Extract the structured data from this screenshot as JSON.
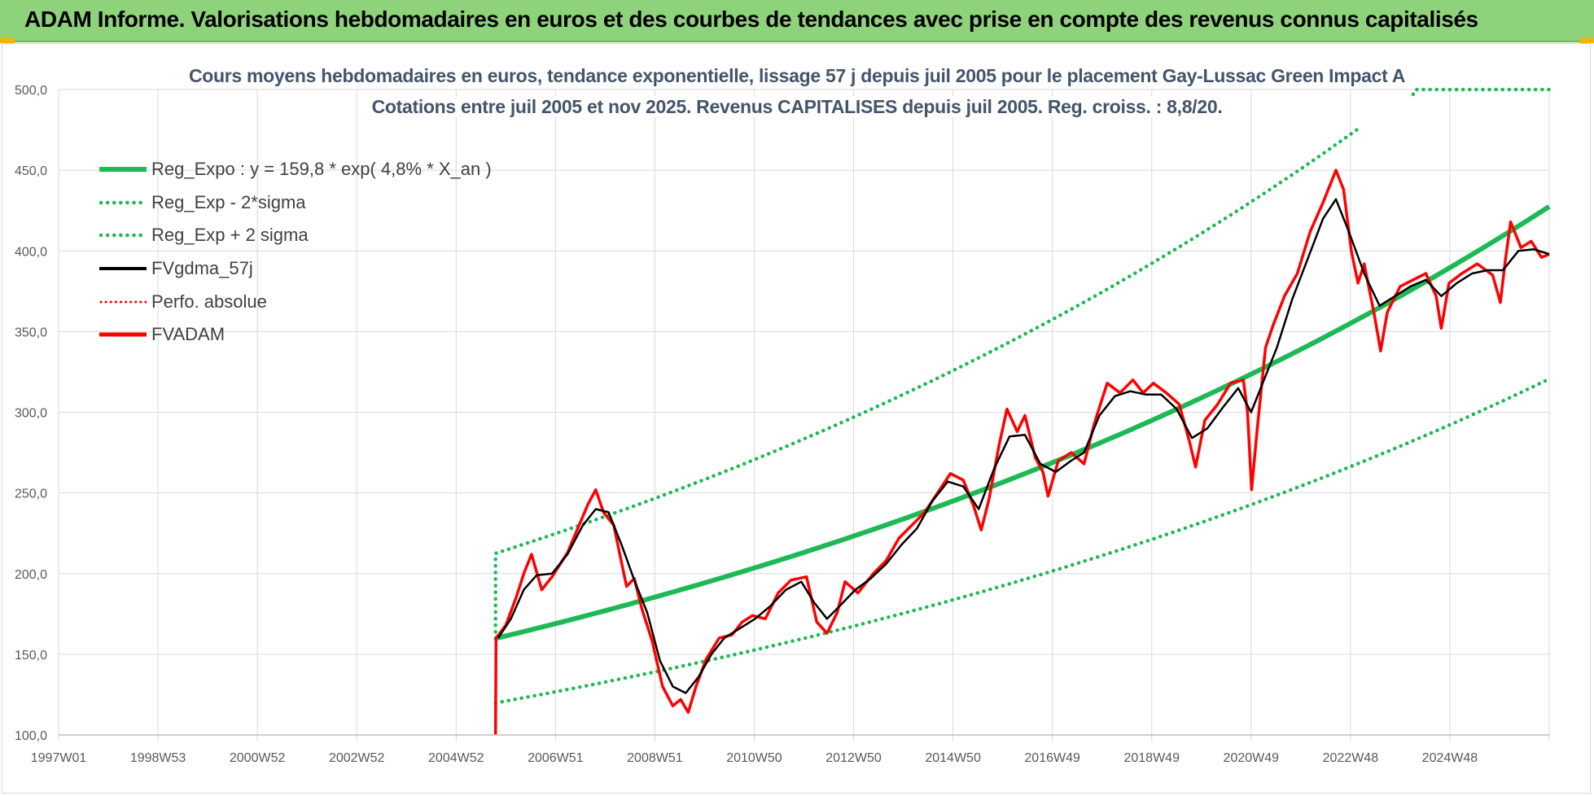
{
  "banner": {
    "title": "ADAM Informe. Valorisations hebdomadaires en euros et des courbes de tendances avec prise en compte des revenus connus capitalisés"
  },
  "colors": {
    "banner_bg": "#8fd27c",
    "reg_green": "#1db954",
    "black": "#000000",
    "red": "#ff0000",
    "grid": "#d9d9d9",
    "axis_text": "#595959"
  },
  "chart_data": {
    "type": "line",
    "title_line1": "Cours moyens hebdomadaires en euros, tendance exponentielle, lissage 57 j depuis juil 2005 pour le placement Gay-Lussac Green Impact A",
    "title_line2": "Cotations entre juil 2005 et nov 2025. Revenus CAPITALISES depuis juil 2005. Reg. croiss. : 8,8/20.",
    "x_ticks": [
      "1997W01",
      "1998W53",
      "2000W52",
      "2002W52",
      "2004W52",
      "2006W51",
      "2008W51",
      "2010W50",
      "2012W50",
      "2014W50",
      "2016W49",
      "2018W49",
      "2020W49",
      "2022W48",
      "2024W48"
    ],
    "x_range": [
      1997.0,
      2026.0
    ],
    "ylim": [
      100,
      500
    ],
    "y_ticks": [
      "100,0",
      "150,0",
      "200,0",
      "250,0",
      "300,0",
      "350,0",
      "400,0",
      "450,0",
      "500,0"
    ],
    "legend": [
      {
        "name": "Reg_Expo : y = 159,8 * exp( 4,8% *  X_an )",
        "style": "solid-green"
      },
      {
        "name": "Reg_Exp - 2*sigma",
        "style": "dotted-green"
      },
      {
        "name": "Reg_Exp + 2 sigma",
        "style": "dotted-green"
      },
      {
        "name": "FVgdma_57j",
        "style": "solid-black"
      },
      {
        "name": "Perfo. absolue",
        "style": "dotted-red"
      },
      {
        "name": "FVADAM",
        "style": "solid-red"
      }
    ],
    "regression": {
      "a": 159.8,
      "rate": 0.048,
      "start": 2005.5,
      "end": 2026.0,
      "lower_factor": 0.75,
      "upper_factor": 1.33,
      "cap": 500
    },
    "series_fvadam": {
      "name": "FVADAM",
      "points": [
        [
          2005.5,
          100
        ],
        [
          2005.51,
          160
        ],
        [
          2005.7,
          168
        ],
        [
          2005.9,
          185
        ],
        [
          2006.05,
          200
        ],
        [
          2006.2,
          212
        ],
        [
          2006.4,
          190
        ],
        [
          2006.6,
          198
        ],
        [
          2006.9,
          213
        ],
        [
          2007.1,
          228
        ],
        [
          2007.3,
          243
        ],
        [
          2007.45,
          252
        ],
        [
          2007.6,
          238
        ],
        [
          2007.8,
          230
        ],
        [
          2007.95,
          207
        ],
        [
          2008.05,
          192
        ],
        [
          2008.2,
          197
        ],
        [
          2008.35,
          178
        ],
        [
          2008.55,
          158
        ],
        [
          2008.75,
          130
        ],
        [
          2008.95,
          118
        ],
        [
          2009.1,
          122
        ],
        [
          2009.25,
          114
        ],
        [
          2009.4,
          130
        ],
        [
          2009.6,
          147
        ],
        [
          2009.85,
          160
        ],
        [
          2010.1,
          162
        ],
        [
          2010.3,
          170
        ],
        [
          2010.5,
          174
        ],
        [
          2010.75,
          172
        ],
        [
          2011.0,
          188
        ],
        [
          2011.25,
          196
        ],
        [
          2011.55,
          198
        ],
        [
          2011.75,
          170
        ],
        [
          2011.95,
          163
        ],
        [
          2012.15,
          176
        ],
        [
          2012.3,
          195
        ],
        [
          2012.55,
          188
        ],
        [
          2012.85,
          200
        ],
        [
          2013.1,
          208
        ],
        [
          2013.35,
          222
        ],
        [
          2013.6,
          230
        ],
        [
          2013.85,
          238
        ],
        [
          2014.1,
          250
        ],
        [
          2014.35,
          262
        ],
        [
          2014.6,
          258
        ],
        [
          2014.8,
          242
        ],
        [
          2014.95,
          227
        ],
        [
          2015.1,
          246
        ],
        [
          2015.3,
          280
        ],
        [
          2015.45,
          302
        ],
        [
          2015.65,
          288
        ],
        [
          2015.8,
          298
        ],
        [
          2016.0,
          272
        ],
        [
          2016.15,
          263
        ],
        [
          2016.25,
          248
        ],
        [
          2016.45,
          270
        ],
        [
          2016.7,
          275
        ],
        [
          2016.95,
          268
        ],
        [
          2017.15,
          293
        ],
        [
          2017.4,
          318
        ],
        [
          2017.65,
          312
        ],
        [
          2017.9,
          320
        ],
        [
          2018.1,
          312
        ],
        [
          2018.3,
          318
        ],
        [
          2018.55,
          312
        ],
        [
          2018.8,
          305
        ],
        [
          2019.0,
          282
        ],
        [
          2019.12,
          266
        ],
        [
          2019.3,
          295
        ],
        [
          2019.55,
          305
        ],
        [
          2019.8,
          318
        ],
        [
          2020.05,
          320
        ],
        [
          2020.13,
          300
        ],
        [
          2020.21,
          252
        ],
        [
          2020.32,
          290
        ],
        [
          2020.48,
          340
        ],
        [
          2020.63,
          354
        ],
        [
          2020.85,
          372
        ],
        [
          2021.1,
          386
        ],
        [
          2021.35,
          412
        ],
        [
          2021.6,
          430
        ],
        [
          2021.85,
          450
        ],
        [
          2022.0,
          438
        ],
        [
          2022.15,
          400
        ],
        [
          2022.28,
          380
        ],
        [
          2022.4,
          392
        ],
        [
          2022.6,
          360
        ],
        [
          2022.72,
          338
        ],
        [
          2022.85,
          362
        ],
        [
          2023.1,
          378
        ],
        [
          2023.35,
          382
        ],
        [
          2023.6,
          386
        ],
        [
          2023.8,
          372
        ],
        [
          2023.9,
          352
        ],
        [
          2024.05,
          380
        ],
        [
          2024.3,
          386
        ],
        [
          2024.6,
          392
        ],
        [
          2024.9,
          385
        ],
        [
          2025.05,
          368
        ],
        [
          2025.15,
          395
        ],
        [
          2025.25,
          418
        ],
        [
          2025.45,
          402
        ],
        [
          2025.65,
          406
        ],
        [
          2025.85,
          396
        ],
        [
          2026.0,
          398
        ]
      ]
    },
    "series_fvgdma": {
      "name": "FVgdma_57j",
      "points": [
        [
          2005.55,
          160
        ],
        [
          2005.8,
          172
        ],
        [
          2006.05,
          190
        ],
        [
          2006.3,
          199
        ],
        [
          2006.6,
          200
        ],
        [
          2006.9,
          212
        ],
        [
          2007.2,
          230
        ],
        [
          2007.45,
          240
        ],
        [
          2007.7,
          238
        ],
        [
          2007.95,
          218
        ],
        [
          2008.2,
          196
        ],
        [
          2008.45,
          176
        ],
        [
          2008.7,
          146
        ],
        [
          2008.95,
          130
        ],
        [
          2009.2,
          126
        ],
        [
          2009.45,
          136
        ],
        [
          2009.7,
          150
        ],
        [
          2009.95,
          160
        ],
        [
          2010.25,
          166
        ],
        [
          2010.55,
          172
        ],
        [
          2010.85,
          180
        ],
        [
          2011.15,
          190
        ],
        [
          2011.45,
          195
        ],
        [
          2011.7,
          182
        ],
        [
          2011.95,
          172
        ],
        [
          2012.2,
          180
        ],
        [
          2012.5,
          190
        ],
        [
          2012.8,
          197
        ],
        [
          2013.1,
          206
        ],
        [
          2013.4,
          218
        ],
        [
          2013.7,
          228
        ],
        [
          2014.0,
          245
        ],
        [
          2014.3,
          257
        ],
        [
          2014.6,
          254
        ],
        [
          2014.9,
          240
        ],
        [
          2015.2,
          265
        ],
        [
          2015.5,
          285
        ],
        [
          2015.8,
          286
        ],
        [
          2016.1,
          268
        ],
        [
          2016.4,
          263
        ],
        [
          2016.7,
          270
        ],
        [
          2016.95,
          275
        ],
        [
          2017.25,
          298
        ],
        [
          2017.55,
          310
        ],
        [
          2017.85,
          313
        ],
        [
          2018.15,
          311
        ],
        [
          2018.45,
          311
        ],
        [
          2018.75,
          302
        ],
        [
          2019.05,
          284
        ],
        [
          2019.35,
          290
        ],
        [
          2019.65,
          303
        ],
        [
          2019.95,
          315
        ],
        [
          2020.2,
          300
        ],
        [
          2020.45,
          320
        ],
        [
          2020.7,
          340
        ],
        [
          2021.0,
          370
        ],
        [
          2021.3,
          395
        ],
        [
          2021.6,
          420
        ],
        [
          2021.85,
          432
        ],
        [
          2022.1,
          412
        ],
        [
          2022.4,
          386
        ],
        [
          2022.7,
          366
        ],
        [
          2023.0,
          372
        ],
        [
          2023.3,
          378
        ],
        [
          2023.6,
          382
        ],
        [
          2023.9,
          372
        ],
        [
          2024.2,
          380
        ],
        [
          2024.5,
          386
        ],
        [
          2024.8,
          388
        ],
        [
          2025.1,
          388
        ],
        [
          2025.4,
          400
        ],
        [
          2025.7,
          401
        ],
        [
          2026.0,
          398
        ]
      ]
    }
  }
}
